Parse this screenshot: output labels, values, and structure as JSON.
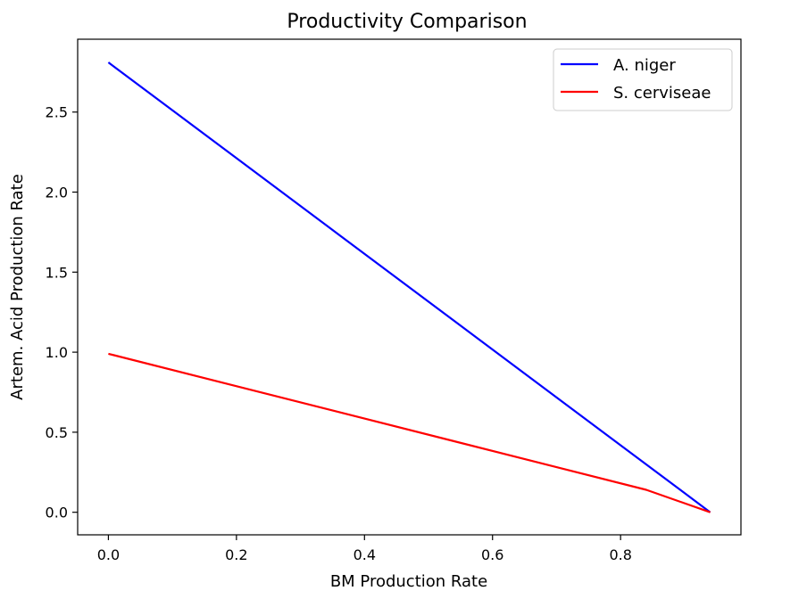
{
  "chart_data": {
    "type": "line",
    "title": "Productivity Comparison",
    "xlabel": "BM Production Rate",
    "ylabel": "Artem. Acid Production Rate",
    "xlim": [
      -0.048,
      0.988
    ],
    "ylim": [
      -0.141,
      2.955
    ],
    "xticks": [
      0.0,
      0.2,
      0.4,
      0.6,
      0.8
    ],
    "xtick_labels": [
      "0.0",
      "0.2",
      "0.4",
      "0.6",
      "0.8"
    ],
    "yticks": [
      0.0,
      0.5,
      1.0,
      1.5,
      2.0,
      2.5
    ],
    "ytick_labels": [
      "0.0",
      "0.5",
      "1.0",
      "1.5",
      "2.0",
      "2.5"
    ],
    "grid": false,
    "legend_position": "top-right",
    "series": [
      {
        "name": "A. niger",
        "color": "#0000ff",
        "x": [
          0.0,
          0.94
        ],
        "y": [
          2.81,
          0.0
        ]
      },
      {
        "name": "S. cerviseae",
        "color": "#ff0000",
        "x": [
          0.0,
          0.84,
          0.94
        ],
        "y": [
          0.99,
          0.14,
          0.0
        ]
      }
    ]
  }
}
